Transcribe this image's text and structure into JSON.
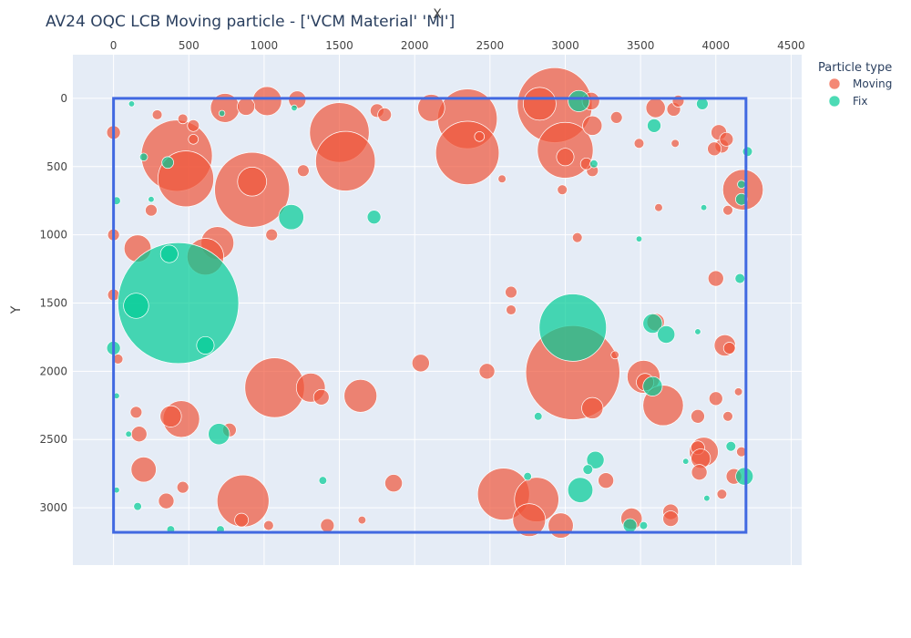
{
  "chart_data": {
    "type": "scatter",
    "title": "AV24 OQC LCB Moving particle - ['VCM Material' 'MI']",
    "xlabel": "X",
    "ylabel": "Y",
    "x_axis_side": "top",
    "y_axis_reversed": true,
    "xlim": [
      -270,
      4570
    ],
    "ylim": [
      -320,
      3420
    ],
    "x_ticks": [
      0,
      500,
      1000,
      1500,
      2000,
      2500,
      3000,
      3500,
      4000,
      4500
    ],
    "y_ticks": [
      0,
      500,
      1000,
      1500,
      2000,
      2500,
      3000
    ],
    "grid": true,
    "legend_position": "top-right",
    "legend_title": "Particle type",
    "boundary": {
      "x0": 0,
      "y0": 0,
      "x1": 4200,
      "y1": 3180,
      "color": "#4169E1"
    },
    "series": [
      {
        "name": "Moving",
        "color": "#EF553B",
        "points": [
          {
            "x": 2930,
            "y": 50,
            "size": 38
          },
          {
            "x": 2830,
            "y": 40,
            "size": 16
          },
          {
            "x": 2350,
            "y": 150,
            "size": 30
          },
          {
            "x": 2350,
            "y": 400,
            "size": 32
          },
          {
            "x": 3000,
            "y": 380,
            "size": 28
          },
          {
            "x": 1500,
            "y": 250,
            "size": 30
          },
          {
            "x": 1540,
            "y": 460,
            "size": 30
          },
          {
            "x": 420,
            "y": 420,
            "size": 36
          },
          {
            "x": 480,
            "y": 590,
            "size": 28
          },
          {
            "x": 920,
            "y": 670,
            "size": 38
          },
          {
            "x": 920,
            "y": 610,
            "size": 14
          },
          {
            "x": 740,
            "y": 70,
            "size": 14
          },
          {
            "x": 1020,
            "y": 20,
            "size": 14
          },
          {
            "x": 2110,
            "y": 70,
            "size": 13
          },
          {
            "x": 880,
            "y": 60,
            "size": 8
          },
          {
            "x": 1220,
            "y": 10,
            "size": 8
          },
          {
            "x": 1750,
            "y": 90,
            "size": 6
          },
          {
            "x": 1800,
            "y": 120,
            "size": 6
          },
          {
            "x": 3180,
            "y": 200,
            "size": 9
          },
          {
            "x": 3170,
            "y": 20,
            "size": 8
          },
          {
            "x": 3600,
            "y": 70,
            "size": 9
          },
          {
            "x": 3720,
            "y": 80,
            "size": 6
          },
          {
            "x": 3750,
            "y": 20,
            "size": 5
          },
          {
            "x": 3340,
            "y": 140,
            "size": 5
          },
          {
            "x": 4180,
            "y": 670,
            "size": 20
          },
          {
            "x": 4020,
            "y": 250,
            "size": 7
          },
          {
            "x": 4040,
            "y": 350,
            "size": 6
          },
          {
            "x": 3990,
            "y": 370,
            "size": 6
          },
          {
            "x": 4070,
            "y": 300,
            "size": 6
          },
          {
            "x": 3180,
            "y": 530,
            "size": 5
          },
          {
            "x": 3140,
            "y": 480,
            "size": 5
          },
          {
            "x": 3000,
            "y": 430,
            "size": 8
          },
          {
            "x": 3490,
            "y": 330,
            "size": 4
          },
          {
            "x": 2980,
            "y": 670,
            "size": 4
          },
          {
            "x": 690,
            "y": 1060,
            "size": 16
          },
          {
            "x": 610,
            "y": 1160,
            "size": 18
          },
          {
            "x": 160,
            "y": 1100,
            "size": 13
          },
          {
            "x": 0,
            "y": 250,
            "size": 6
          },
          {
            "x": 290,
            "y": 120,
            "size": 4
          },
          {
            "x": 530,
            "y": 200,
            "size": 5
          },
          {
            "x": 460,
            "y": 150,
            "size": 4
          },
          {
            "x": 530,
            "y": 300,
            "size": 4
          },
          {
            "x": 0,
            "y": 1000,
            "size": 5
          },
          {
            "x": 250,
            "y": 820,
            "size": 5
          },
          {
            "x": 1050,
            "y": 1000,
            "size": 5
          },
          {
            "x": 1260,
            "y": 530,
            "size": 5
          },
          {
            "x": 2430,
            "y": 280,
            "size": 4
          },
          {
            "x": 2580,
            "y": 590,
            "size": 3
          },
          {
            "x": 3080,
            "y": 1020,
            "size": 4
          },
          {
            "x": 3620,
            "y": 800,
            "size": 3
          },
          {
            "x": 4080,
            "y": 820,
            "size": 4
          },
          {
            "x": 3730,
            "y": 330,
            "size": 3
          },
          {
            "x": 0,
            "y": 1440,
            "size": 5
          },
          {
            "x": 2640,
            "y": 1420,
            "size": 5
          },
          {
            "x": 2640,
            "y": 1550,
            "size": 4
          },
          {
            "x": 4000,
            "y": 1320,
            "size": 7
          },
          {
            "x": 3600,
            "y": 1640,
            "size": 8
          },
          {
            "x": 3050,
            "y": 2010,
            "size": 48
          },
          {
            "x": 1070,
            "y": 2120,
            "size": 30
          },
          {
            "x": 1310,
            "y": 2120,
            "size": 14
          },
          {
            "x": 1380,
            "y": 2190,
            "size": 7
          },
          {
            "x": 1640,
            "y": 2180,
            "size": 16
          },
          {
            "x": 2040,
            "y": 1940,
            "size": 8
          },
          {
            "x": 2480,
            "y": 2000,
            "size": 7
          },
          {
            "x": 3520,
            "y": 2040,
            "size": 16
          },
          {
            "x": 3650,
            "y": 2250,
            "size": 20
          },
          {
            "x": 3180,
            "y": 2270,
            "size": 10
          },
          {
            "x": 3530,
            "y": 2080,
            "size": 8
          },
          {
            "x": 3330,
            "y": 1880,
            "size": 3
          },
          {
            "x": 4060,
            "y": 1810,
            "size": 10
          },
          {
            "x": 4090,
            "y": 1830,
            "size": 5
          },
          {
            "x": 4000,
            "y": 2200,
            "size": 6
          },
          {
            "x": 4080,
            "y": 2330,
            "size": 4
          },
          {
            "x": 4150,
            "y": 2150,
            "size": 3
          },
          {
            "x": 3880,
            "y": 2330,
            "size": 6
          },
          {
            "x": 3920,
            "y": 2590,
            "size": 14
          },
          {
            "x": 3880,
            "y": 2560,
            "size": 6
          },
          {
            "x": 3900,
            "y": 2640,
            "size": 9
          },
          {
            "x": 3890,
            "y": 2740,
            "size": 7
          },
          {
            "x": 4120,
            "y": 2770,
            "size": 7
          },
          {
            "x": 4040,
            "y": 2900,
            "size": 4
          },
          {
            "x": 3700,
            "y": 3030,
            "size": 7
          },
          {
            "x": 3700,
            "y": 3080,
            "size": 7
          },
          {
            "x": 3440,
            "y": 3080,
            "size": 10
          },
          {
            "x": 2590,
            "y": 2900,
            "size": 26
          },
          {
            "x": 2810,
            "y": 2940,
            "size": 22
          },
          {
            "x": 2760,
            "y": 3090,
            "size": 16
          },
          {
            "x": 2970,
            "y": 3130,
            "size": 12
          },
          {
            "x": 3270,
            "y": 2800,
            "size": 7
          },
          {
            "x": 450,
            "y": 2350,
            "size": 18
          },
          {
            "x": 380,
            "y": 2330,
            "size": 10
          },
          {
            "x": 150,
            "y": 2300,
            "size": 5
          },
          {
            "x": 170,
            "y": 2460,
            "size": 7
          },
          {
            "x": 200,
            "y": 2720,
            "size": 12
          },
          {
            "x": 770,
            "y": 2430,
            "size": 6
          },
          {
            "x": 860,
            "y": 2950,
            "size": 26
          },
          {
            "x": 850,
            "y": 3090,
            "size": 6
          },
          {
            "x": 1030,
            "y": 3130,
            "size": 4
          },
          {
            "x": 1420,
            "y": 3130,
            "size": 6
          },
          {
            "x": 1860,
            "y": 2820,
            "size": 8
          },
          {
            "x": 1650,
            "y": 3090,
            "size": 3
          },
          {
            "x": 350,
            "y": 2950,
            "size": 7
          },
          {
            "x": 460,
            "y": 2850,
            "size": 5
          },
          {
            "x": 30,
            "y": 1910,
            "size": 4
          },
          {
            "x": 4170,
            "y": 2590,
            "size": 4
          }
        ]
      },
      {
        "name": "Fix",
        "color": "#00CC96",
        "points": [
          {
            "x": 430,
            "y": 1500,
            "size": 62
          },
          {
            "x": 3050,
            "y": 1680,
            "size": 34
          },
          {
            "x": 150,
            "y": 1520,
            "size": 12
          },
          {
            "x": 370,
            "y": 1140,
            "size": 8
          },
          {
            "x": 610,
            "y": 1810,
            "size": 8
          },
          {
            "x": 1180,
            "y": 870,
            "size": 12
          },
          {
            "x": 1730,
            "y": 870,
            "size": 6
          },
          {
            "x": 3090,
            "y": 20,
            "size": 10
          },
          {
            "x": 3590,
            "y": 200,
            "size": 6
          },
          {
            "x": 3910,
            "y": 40,
            "size": 5
          },
          {
            "x": 4210,
            "y": 390,
            "size": 4
          },
          {
            "x": 4170,
            "y": 740,
            "size": 5
          },
          {
            "x": 4160,
            "y": 1320,
            "size": 4
          },
          {
            "x": 4170,
            "y": 630,
            "size": 3
          },
          {
            "x": 3580,
            "y": 1650,
            "size": 9
          },
          {
            "x": 3670,
            "y": 1730,
            "size": 8
          },
          {
            "x": 3580,
            "y": 2110,
            "size": 9
          },
          {
            "x": 3100,
            "y": 2870,
            "size": 12
          },
          {
            "x": 3200,
            "y": 2650,
            "size": 8
          },
          {
            "x": 3150,
            "y": 2720,
            "size": 4
          },
          {
            "x": 3430,
            "y": 3130,
            "size": 6
          },
          {
            "x": 3520,
            "y": 3130,
            "size": 3
          },
          {
            "x": 4190,
            "y": 2770,
            "size": 8
          },
          {
            "x": 4100,
            "y": 2550,
            "size": 4
          },
          {
            "x": 700,
            "y": 2460,
            "size": 10
          },
          {
            "x": 0,
            "y": 1830,
            "size": 6
          },
          {
            "x": 360,
            "y": 470,
            "size": 5
          },
          {
            "x": 20,
            "y": 750,
            "size": 3
          },
          {
            "x": 200,
            "y": 430,
            "size": 3
          },
          {
            "x": 160,
            "y": 2990,
            "size": 3
          },
          {
            "x": 380,
            "y": 3160,
            "size": 3
          },
          {
            "x": 710,
            "y": 3160,
            "size": 3
          },
          {
            "x": 1390,
            "y": 2800,
            "size": 3
          },
          {
            "x": 2750,
            "y": 2770,
            "size": 3
          },
          {
            "x": 2820,
            "y": 2330,
            "size": 3
          },
          {
            "x": 3190,
            "y": 480,
            "size": 3
          },
          {
            "x": 3490,
            "y": 1030,
            "size": 2
          },
          {
            "x": 3920,
            "y": 800,
            "size": 2
          },
          {
            "x": 3880,
            "y": 1710,
            "size": 2
          },
          {
            "x": 3940,
            "y": 2930,
            "size": 2
          },
          {
            "x": 3800,
            "y": 2660,
            "size": 2
          },
          {
            "x": 100,
            "y": 2460,
            "size": 2
          },
          {
            "x": 20,
            "y": 2870,
            "size": 2
          },
          {
            "x": 20,
            "y": 2180,
            "size": 2
          },
          {
            "x": 250,
            "y": 740,
            "size": 2
          },
          {
            "x": 720,
            "y": 110,
            "size": 2
          },
          {
            "x": 120,
            "y": 40,
            "size": 2
          },
          {
            "x": 1200,
            "y": 70,
            "size": 2
          }
        ]
      }
    ]
  }
}
